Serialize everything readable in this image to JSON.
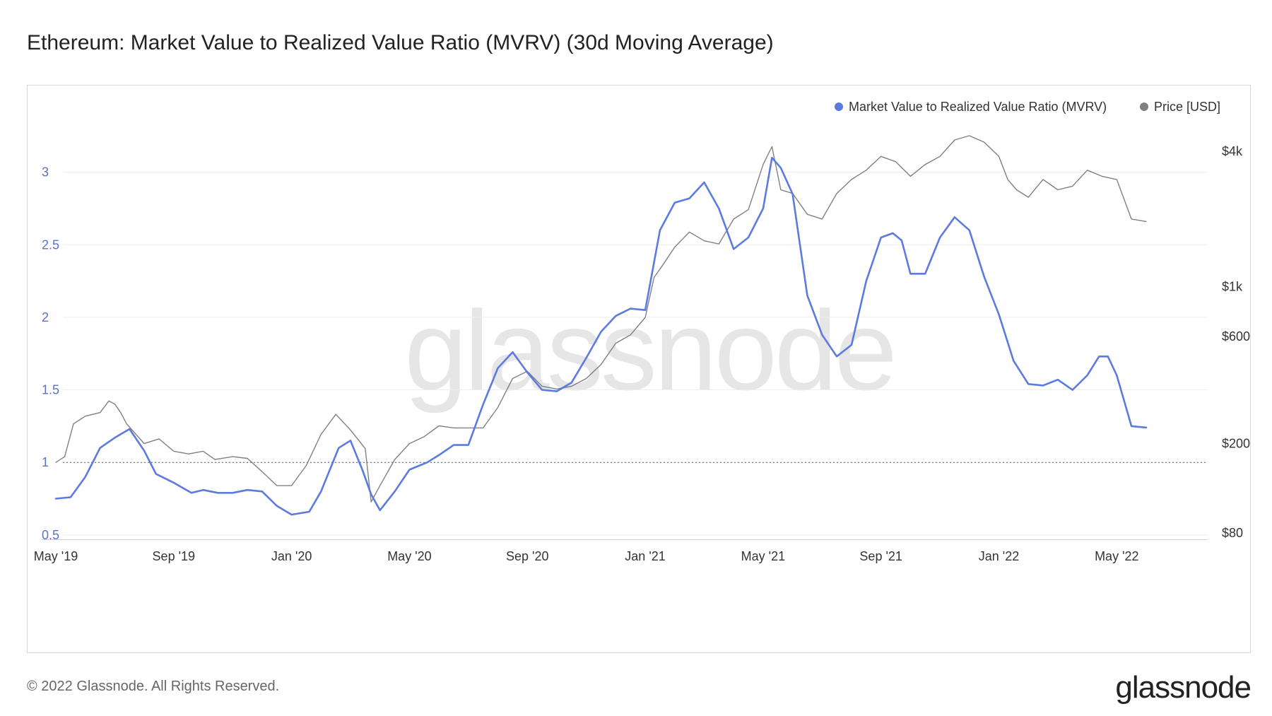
{
  "title": "Ethereum: Market Value to Realized Value Ratio (MVRV) (30d Moving Average)",
  "footer": {
    "copyright": "© 2022 Glassnode. All Rights Reserved.",
    "logo": "glassnode"
  },
  "watermark": "glassnode",
  "chart_data": {
    "type": "line",
    "title": "Ethereum: Market Value to Realized Value Ratio (MVRV) (30d Moving Average)",
    "xlabel": "",
    "ylabel": "",
    "x_range": [
      "2019-05-01",
      "2022-05-31"
    ],
    "x_ticks": [
      {
        "label": "May '19",
        "month": 0
      },
      {
        "label": "Sep '19",
        "month": 4
      },
      {
        "label": "Jan '20",
        "month": 8
      },
      {
        "label": "May '20",
        "month": 12
      },
      {
        "label": "Sep '20",
        "month": 16
      },
      {
        "label": "Jan '21",
        "month": 20
      },
      {
        "label": "May '21",
        "month": 24
      },
      {
        "label": "Sep '21",
        "month": 28
      },
      {
        "label": "Jan '22",
        "month": 32
      },
      {
        "label": "May '22",
        "month": 36
      }
    ],
    "y_left": {
      "ticks": [
        0.5,
        1,
        1.5,
        2,
        2.5,
        3
      ],
      "tick_labels": [
        "0.5",
        "1",
        "1.5",
        "2",
        "2.5",
        "3"
      ],
      "ylim": [
        0.47,
        3.5
      ],
      "color": "#5b72c8"
    },
    "y_right": {
      "scale": "log",
      "ticks": [
        80,
        200,
        600,
        1000,
        4000
      ],
      "tick_labels": [
        "$80",
        "$200",
        "$600",
        "$1k",
        "$4k"
      ],
      "ylim": [
        75,
        6800
      ]
    },
    "reference_line": {
      "y": 1,
      "axis": "left",
      "style": "dotted"
    },
    "legend": [
      {
        "label": "Market Value to Realized Value Ratio (MVRV)",
        "color": "#5b7be0"
      },
      {
        "label": "Price [USD]",
        "color": "#808080"
      }
    ],
    "legend_position": "top-right",
    "series": [
      {
        "name": "Market Value to Realized Value Ratio (MVRV)",
        "axis": "left",
        "color": "#5b7be0",
        "x_month": [
          0,
          0.5,
          1,
          1.5,
          2,
          2.5,
          3,
          3.4,
          4,
          4.6,
          5,
          5.5,
          6,
          6.5,
          7,
          7.5,
          8,
          8.6,
          9,
          9.6,
          10,
          10.4,
          10.7,
          11,
          11.5,
          12,
          12.6,
          13,
          13.5,
          14,
          14.5,
          15,
          15.5,
          16,
          16.5,
          17,
          17.5,
          18,
          18.5,
          19,
          19.5,
          20,
          20.5,
          21,
          21.5,
          22,
          22.5,
          23,
          23.5,
          24,
          24.3,
          24.6,
          25,
          25.5,
          26,
          26.5,
          27,
          27.5,
          28,
          28.4,
          28.7,
          29,
          29.5,
          30,
          30.5,
          31,
          31.5,
          32,
          32.5,
          33,
          33.5,
          34,
          34.5,
          35,
          35.4,
          35.7,
          36,
          36.5,
          37
        ],
        "values": [
          0.75,
          0.76,
          0.9,
          1.1,
          1.17,
          1.23,
          1.08,
          0.92,
          0.86,
          0.79,
          0.81,
          0.79,
          0.79,
          0.81,
          0.8,
          0.7,
          0.64,
          0.66,
          0.8,
          1.1,
          1.15,
          0.95,
          0.78,
          0.67,
          0.8,
          0.95,
          1.0,
          1.05,
          1.12,
          1.12,
          1.4,
          1.65,
          1.76,
          1.62,
          1.5,
          1.49,
          1.55,
          1.72,
          1.9,
          2.01,
          2.06,
          2.05,
          2.6,
          2.79,
          2.82,
          2.93,
          2.75,
          2.47,
          2.55,
          2.75,
          3.1,
          3.03,
          2.85,
          2.15,
          1.88,
          1.73,
          1.81,
          2.25,
          2.55,
          2.58,
          2.53,
          2.3,
          2.3,
          2.55,
          2.69,
          2.6,
          2.28,
          2.02,
          1.7,
          1.54,
          1.53,
          1.57,
          1.5,
          1.6,
          1.73,
          1.73,
          1.6,
          1.25,
          1.24
        ]
      },
      {
        "name": "Price [USD]",
        "axis": "right",
        "color": "#808080",
        "x_month": [
          0,
          0.3,
          0.6,
          1,
          1.5,
          1.8,
          2,
          2.2,
          2.4,
          3,
          3.5,
          4,
          4.5,
          5,
          5.4,
          6,
          6.5,
          7,
          7.5,
          8,
          8.5,
          9,
          9.5,
          10,
          10.5,
          10.7,
          11,
          11.5,
          12,
          12.5,
          13,
          13.5,
          14,
          14.5,
          15,
          15.5,
          16,
          16.5,
          17,
          17.5,
          18,
          18.5,
          19,
          19.5,
          20,
          20.3,
          20.6,
          21,
          21.5,
          22,
          22.5,
          23,
          23.5,
          24,
          24.3,
          24.6,
          25,
          25.5,
          26,
          26.5,
          27,
          27.5,
          28,
          28.5,
          29,
          29.5,
          30,
          30.5,
          31,
          31.5,
          32,
          32.3,
          32.6,
          33,
          33.5,
          34,
          34.5,
          35,
          35.5,
          36,
          36.5,
          37
        ],
        "values": [
          165,
          175,
          245,
          265,
          275,
          310,
          300,
          275,
          245,
          200,
          210,
          185,
          180,
          185,
          170,
          175,
          172,
          150,
          130,
          130,
          160,
          220,
          270,
          230,
          190,
          110,
          130,
          170,
          200,
          215,
          240,
          235,
          235,
          235,
          290,
          390,
          420,
          360,
          350,
          360,
          390,
          450,
          560,
          610,
          730,
          1100,
          1250,
          1500,
          1750,
          1600,
          1550,
          2000,
          2200,
          3500,
          4200,
          2700,
          2600,
          2100,
          2000,
          2600,
          3000,
          3300,
          3800,
          3600,
          3100,
          3500,
          3800,
          4500,
          4700,
          4400,
          3800,
          3000,
          2700,
          2500,
          3000,
          2700,
          2800,
          3300,
          3100,
          3000,
          2000,
          1950
        ]
      }
    ]
  }
}
